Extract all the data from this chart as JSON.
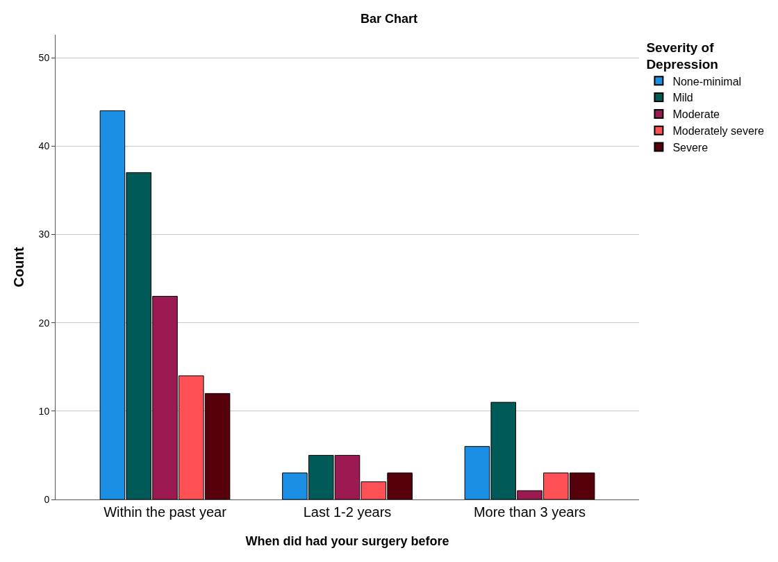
{
  "chart_data": {
    "type": "bar",
    "title": "Bar Chart",
    "xlabel": "When did had your surgery before",
    "ylabel": "Count",
    "legend_title": "Severity of Depression",
    "categories": [
      "Within the past year",
      "Last 1-2 years",
      "More than 3 years"
    ],
    "series": [
      {
        "name": "None-minimal",
        "color": "#1a8fe3",
        "values": [
          44,
          3,
          6
        ]
      },
      {
        "name": "Mild",
        "color": "#005a57",
        "values": [
          37,
          5,
          11
        ]
      },
      {
        "name": "Moderate",
        "color": "#9b1a52",
        "values": [
          23,
          5,
          1
        ]
      },
      {
        "name": "Moderately severe",
        "color": "#ff5055",
        "values": [
          14,
          2,
          3
        ]
      },
      {
        "name": "Severe",
        "color": "#55000a",
        "values": [
          12,
          3,
          3
        ]
      }
    ],
    "ylim": [
      0,
      52.6
    ],
    "yticks": [
      0,
      10,
      20,
      30,
      40,
      50
    ],
    "grid": "y",
    "legend": "top right"
  }
}
